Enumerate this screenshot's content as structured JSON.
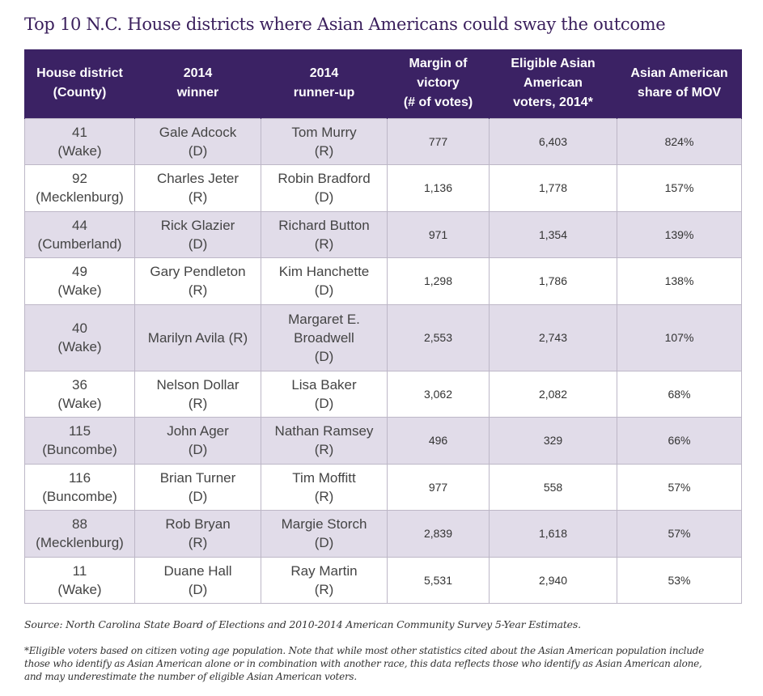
{
  "title": "Top 10 N.C. House districts where Asian Americans could sway the outcome",
  "header": {
    "district": [
      "House district",
      "(County)"
    ],
    "winner": [
      "2014",
      "winner"
    ],
    "runner_up": [
      "2014",
      "runner-up"
    ],
    "margin": [
      "Margin of",
      "victory",
      "(# of votes)"
    ],
    "eligible": [
      "Eligible Asian",
      "American",
      "voters, 2014*"
    ],
    "share": [
      "Asian American",
      "share of MOV"
    ]
  },
  "rows": [
    {
      "district": [
        "41",
        "(Wake)"
      ],
      "winner": [
        "Gale Adcock",
        "(D)"
      ],
      "runner_up": [
        "Tom Murry",
        "(R)"
      ],
      "margin": "777",
      "eligible": "6,403",
      "share": "824%"
    },
    {
      "district": [
        "92",
        "(Mecklenburg)"
      ],
      "winner": [
        "Charles Jeter",
        "(R)"
      ],
      "runner_up": [
        "Robin Bradford",
        "(D)"
      ],
      "margin": "1,136",
      "eligible": "1,778",
      "share": "157%"
    },
    {
      "district": [
        "44",
        "(Cumberland)"
      ],
      "winner": [
        "Rick Glazier",
        "(D)"
      ],
      "runner_up": [
        "Richard Button",
        "(R)"
      ],
      "margin": "971",
      "eligible": "1,354",
      "share": "139%"
    },
    {
      "district": [
        "49",
        "(Wake)"
      ],
      "winner": [
        "Gary Pendleton",
        "(R)"
      ],
      "runner_up": [
        "Kim Hanchette",
        "(D)"
      ],
      "margin": "1,298",
      "eligible": "1,786",
      "share": "138%"
    },
    {
      "district": [
        "40",
        "(Wake)"
      ],
      "winner": [
        "Marilyn Avila (R)"
      ],
      "runner_up": [
        "Margaret E.",
        "Broadwell",
        "(D)"
      ],
      "margin": "2,553",
      "eligible": "2,743",
      "share": "107%"
    },
    {
      "district": [
        "36",
        "(Wake)"
      ],
      "winner": [
        "Nelson Dollar",
        "(R)"
      ],
      "runner_up": [
        "Lisa Baker",
        "(D)"
      ],
      "margin": "3,062",
      "eligible": "2,082",
      "share": "68%"
    },
    {
      "district": [
        "115",
        "(Buncombe)"
      ],
      "winner": [
        "John Ager",
        "(D)"
      ],
      "runner_up": [
        "Nathan Ramsey",
        "(R)"
      ],
      "margin": "496",
      "eligible": "329",
      "share": "66%"
    },
    {
      "district": [
        "116",
        "(Buncombe)"
      ],
      "winner": [
        "Brian Turner",
        "(D)"
      ],
      "runner_up": [
        "Tim Moffitt",
        "(R)"
      ],
      "margin": "977",
      "eligible": "558",
      "share": "57%"
    },
    {
      "district": [
        "88",
        "(Mecklenburg)"
      ],
      "winner": [
        "Rob Bryan",
        "(R)"
      ],
      "runner_up": [
        "Margie Storch",
        "(D)"
      ],
      "margin": "2,839",
      "eligible": "1,618",
      "share": "57%"
    },
    {
      "district": [
        "11",
        "(Wake)"
      ],
      "winner": [
        "Duane Hall",
        "(D)"
      ],
      "runner_up": [
        "Ray Martin",
        "(R)"
      ],
      "margin": "5,531",
      "eligible": "2,940",
      "share": "53%"
    }
  ],
  "source": "Source: North Carolina State Board of Elections and 2010-2014 American Community Survey 5-Year Estimates.",
  "footnote": [
    "*Eligible voters based on citizen voting age population. Note that while most other statistics cited about the Asian American population include",
    "those who identify as Asian American alone or in combination with another race, this data reflects those who identify as Asian American alone,",
    "and may underestimate the number of eligible Asian American voters."
  ],
  "colors": {
    "header_bg": "#3b2264",
    "row_shade": "#e1dce9",
    "title": "#3a1f5c"
  }
}
